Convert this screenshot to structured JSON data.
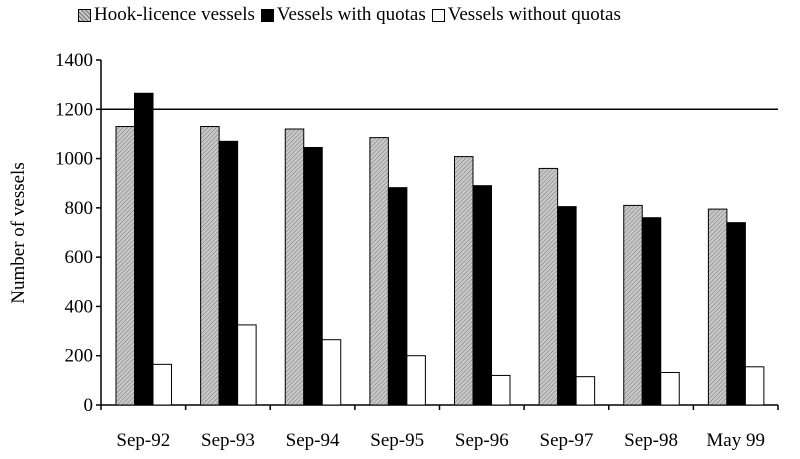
{
  "chart_data": {
    "type": "bar",
    "ylabel": "Number of vessels",
    "xlabel": "",
    "ylim": [
      0,
      1400
    ],
    "yticks": [
      0,
      200,
      400,
      600,
      800,
      1000,
      1200,
      1400
    ],
    "grid": "horizontal line at 1200",
    "legend_position": "top",
    "categories": [
      "Sep-92",
      "Sep-93",
      "Sep-94",
      "Sep-95",
      "Sep-96",
      "Sep-97",
      "Sep-98",
      "May 99"
    ],
    "series": [
      {
        "name": "Hook-licence vessels",
        "color": "#c0c0c0",
        "pattern": "hatched",
        "values": [
          1130,
          1130,
          1120,
          1085,
          1008,
          960,
          810,
          795
        ]
      },
      {
        "name": "Vessels with quotas",
        "color": "#000000",
        "pattern": "solid",
        "values": [
          1265,
          1070,
          1045,
          882,
          890,
          805,
          760,
          740
        ]
      },
      {
        "name": "Vessels without quotas",
        "color": "#ffffff",
        "pattern": "empty",
        "values": [
          165,
          325,
          265,
          200,
          120,
          115,
          132,
          155
        ]
      }
    ]
  }
}
